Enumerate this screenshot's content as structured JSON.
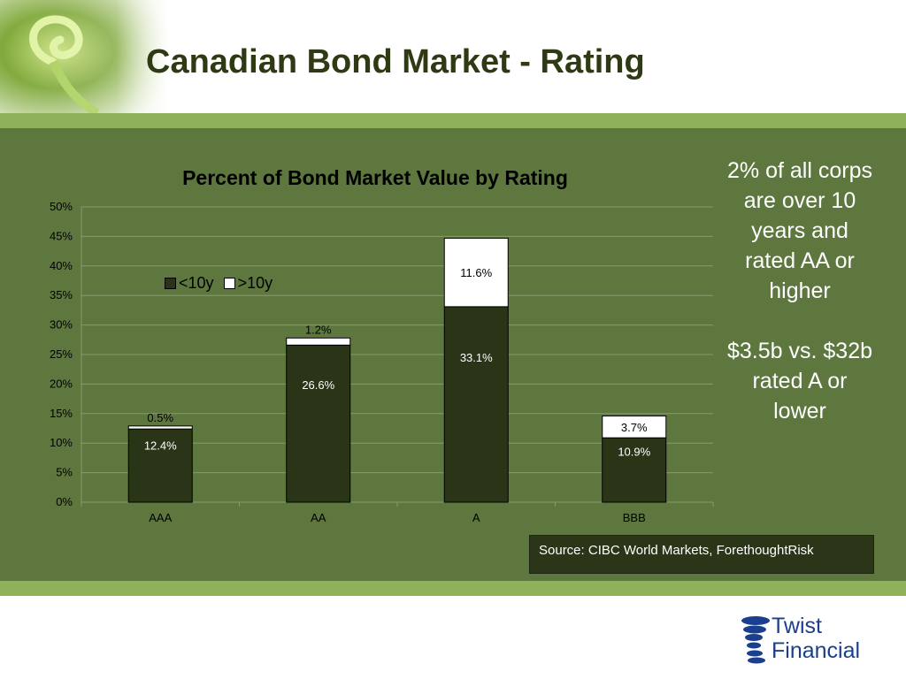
{
  "slide": {
    "title": "Canadian Bond Market - Rating",
    "side_note": [
      "2% of all corps are over 10 years and rated AA or higher",
      "$3.5b vs. $32b rated A or lower"
    ],
    "source": "Source: CIBC World Markets, ForethoughtRisk",
    "logo": {
      "line1": "Twist",
      "line2": "Financial",
      "icon": "twist-swirl-icon"
    },
    "colors": {
      "panel": "#5d773f",
      "band": "#8fb15a",
      "dark_series": "#2a3518",
      "light_series": "#ffffff",
      "title": "#2d3a14",
      "logo": "#1b3f8f"
    }
  },
  "chart_data": {
    "type": "bar",
    "stacked": true,
    "title": "Percent of Bond Market Value by Rating",
    "categories": [
      "AAA",
      "AA",
      "A",
      "BBB"
    ],
    "series": [
      {
        "name": "<10y",
        "values": [
          12.4,
          26.6,
          33.1,
          10.9
        ],
        "labels": [
          "12.4%",
          "26.6%",
          "33.1%",
          "10.9%"
        ],
        "color": "#2a3518"
      },
      {
        "name": ">10y",
        "values": [
          0.5,
          1.2,
          11.6,
          3.7
        ],
        "labels": [
          "0.5%",
          "1.2%",
          "11.6%",
          "3.7%"
        ],
        "color": "#ffffff"
      }
    ],
    "yticks": [
      "0%",
      "5%",
      "10%",
      "15%",
      "20%",
      "25%",
      "30%",
      "35%",
      "40%",
      "45%",
      "50%"
    ],
    "ylim": [
      0,
      50
    ],
    "grid": true,
    "legend": "top-left"
  }
}
